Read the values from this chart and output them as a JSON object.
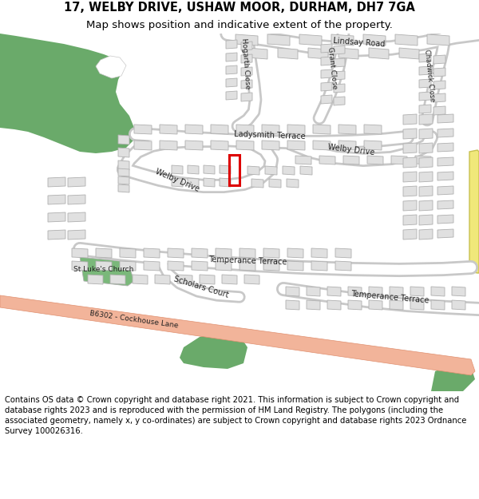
{
  "title": "17, WELBY DRIVE, USHAW MOOR, DURHAM, DH7 7GA",
  "subtitle": "Map shows position and indicative extent of the property.",
  "copyright": "Contains OS data © Crown copyright and database right 2021. This information is subject to Crown copyright and database rights 2023 and is reproduced with the permission of HM Land Registry. The polygons (including the associated geometry, namely x, y co-ordinates) are subject to Crown copyright and database rights 2023 Ordnance Survey 100026316.",
  "bg_color": "#ffffff",
  "map_bg": "#f5f5f5",
  "road_color": "#ffffff",
  "road_outline": "#c8c8c8",
  "building_fill": "#e0e0e0",
  "building_outline": "#b0b0b0",
  "green1": "#6aaa6a",
  "green2": "#5a9e5a",
  "red_highlight": "#dd0000",
  "salmon_road_fill": "#f2b49a",
  "salmon_road_edge": "#e09070",
  "yellow_strip": "#f0e87a",
  "yellow_edge": "#c8c050",
  "church_green": "#7ab87a",
  "title_fontsize": 10.5,
  "subtitle_fontsize": 9.5,
  "copyright_fontsize": 7.2,
  "label_fontsize": 7.0,
  "label_color": "#222222"
}
